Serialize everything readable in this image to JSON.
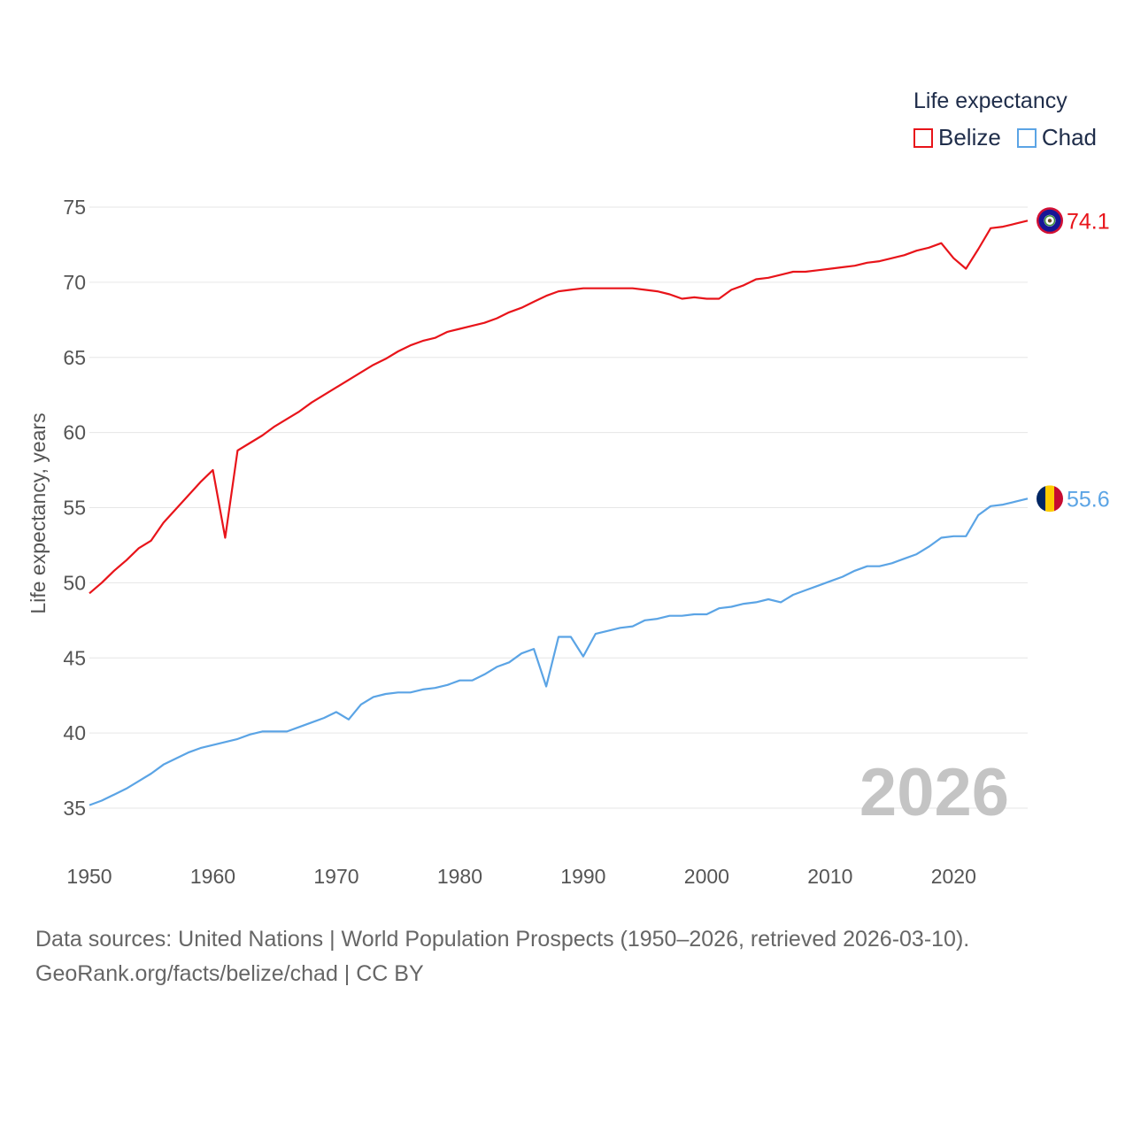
{
  "legend": {
    "title": "Life expectancy",
    "items": [
      {
        "label": "Belize",
        "color": "#e8141a"
      },
      {
        "label": "Chad",
        "color": "#5ba4e5"
      }
    ]
  },
  "source": {
    "line1": "Data sources: United Nations | World Population Prospects (1950–2026, retrieved 2026-03-10).",
    "line2": "GeoRank.org/facts/belize/chad | CC BY"
  },
  "chart_data": {
    "type": "line",
    "title": "Life expectancy",
    "xlabel": "",
    "ylabel": "Life expectancy, years",
    "xlim": [
      1950,
      2026
    ],
    "ylim": [
      33,
      76
    ],
    "x_ticks": [
      1950,
      1960,
      1970,
      1980,
      1990,
      2000,
      2010,
      2020
    ],
    "y_ticks": [
      35,
      40,
      45,
      50,
      55,
      60,
      65,
      70,
      75
    ],
    "year_watermark": "2026",
    "grid": true,
    "x": [
      1950,
      1951,
      1952,
      1953,
      1954,
      1955,
      1956,
      1957,
      1958,
      1959,
      1960,
      1961,
      1962,
      1963,
      1964,
      1965,
      1966,
      1967,
      1968,
      1969,
      1970,
      1971,
      1972,
      1973,
      1974,
      1975,
      1976,
      1977,
      1978,
      1979,
      1980,
      1981,
      1982,
      1983,
      1984,
      1985,
      1986,
      1987,
      1988,
      1989,
      1990,
      1991,
      1992,
      1993,
      1994,
      1995,
      1996,
      1997,
      1998,
      1999,
      2000,
      2001,
      2002,
      2003,
      2004,
      2005,
      2006,
      2007,
      2008,
      2009,
      2010,
      2011,
      2012,
      2013,
      2014,
      2015,
      2016,
      2017,
      2018,
      2019,
      2020,
      2021,
      2022,
      2023,
      2024,
      2025,
      2026
    ],
    "series": [
      {
        "name": "Belize",
        "color": "#e8141a",
        "end_label": "74.1",
        "values": [
          49.3,
          50.0,
          50.8,
          51.5,
          52.3,
          52.8,
          54.0,
          54.9,
          55.8,
          56.7,
          57.5,
          53.0,
          58.8,
          59.3,
          59.8,
          60.4,
          60.9,
          61.4,
          62.0,
          62.5,
          63.0,
          63.5,
          64.0,
          64.5,
          64.9,
          65.4,
          65.8,
          66.1,
          66.3,
          66.7,
          66.9,
          67.1,
          67.3,
          67.6,
          68.0,
          68.3,
          68.7,
          69.1,
          69.4,
          69.5,
          69.6,
          69.6,
          69.6,
          69.6,
          69.6,
          69.5,
          69.4,
          69.2,
          68.9,
          69.0,
          68.9,
          68.9,
          69.5,
          69.8,
          70.2,
          70.3,
          70.5,
          70.7,
          70.7,
          70.8,
          70.9,
          71.0,
          71.1,
          71.3,
          71.4,
          71.6,
          71.8,
          72.1,
          72.3,
          72.6,
          71.6,
          70.9,
          72.2,
          73.6,
          73.7,
          73.9,
          74.1
        ]
      },
      {
        "name": "Chad",
        "color": "#5ba4e5",
        "end_label": "55.6",
        "values": [
          35.2,
          35.5,
          35.9,
          36.3,
          36.8,
          37.3,
          37.9,
          38.3,
          38.7,
          39.0,
          39.2,
          39.4,
          39.6,
          39.9,
          40.1,
          40.1,
          40.1,
          40.4,
          40.7,
          41.0,
          41.4,
          40.9,
          41.9,
          42.4,
          42.6,
          42.7,
          42.7,
          42.9,
          43.0,
          43.2,
          43.5,
          43.5,
          43.9,
          44.4,
          44.7,
          45.3,
          45.6,
          43.1,
          46.4,
          46.4,
          45.1,
          46.6,
          46.8,
          47.0,
          47.1,
          47.5,
          47.6,
          47.8,
          47.8,
          47.9,
          47.9,
          48.3,
          48.4,
          48.6,
          48.7,
          48.9,
          48.7,
          49.2,
          49.5,
          49.8,
          50.1,
          50.4,
          50.8,
          51.1,
          51.1,
          51.3,
          51.6,
          51.9,
          52.4,
          53.0,
          53.1,
          53.1,
          54.5,
          55.1,
          55.2,
          55.4,
          55.6
        ]
      }
    ]
  }
}
